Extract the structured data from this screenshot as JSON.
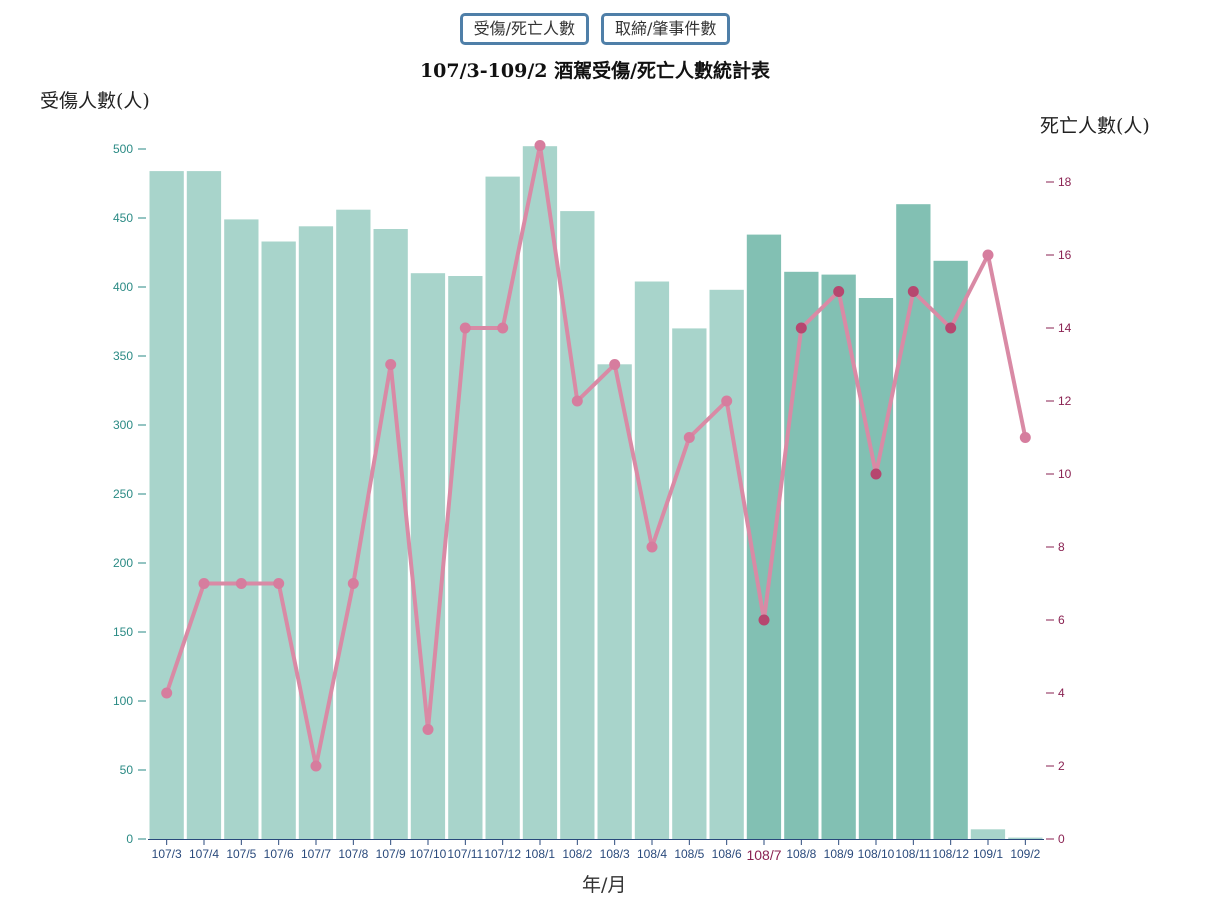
{
  "toolbar": {
    "tab_casualties": "受傷/死亡人數",
    "tab_cases": "取締/肇事件數"
  },
  "colors": {
    "bar_light": "#a8d4cb",
    "bar_dark": "#82c0b3",
    "line": "#d98aa5",
    "point": "#d67d9e",
    "point_dark": "#b6476f",
    "left_axis": "#2a8a84",
    "right_axis": "#8a2252",
    "x_axis": "#2a4a7c",
    "button_border": "#4f7fa8"
  },
  "chart_data": {
    "type": "bar",
    "title": "107/3-109/2 酒駕受傷/死亡人數統計表",
    "xlabel": "年/月",
    "ylabel": "受傷人數(人)",
    "y2label": "死亡人數(人)",
    "categories": [
      "107/3",
      "107/4",
      "107/5",
      "107/6",
      "107/7",
      "107/8",
      "107/9",
      "107/10",
      "107/11",
      "107/12",
      "108/1",
      "108/2",
      "108/3",
      "108/4",
      "108/5",
      "108/6",
      "108/7",
      "108/8",
      "108/9",
      "108/10",
      "108/11",
      "108/12",
      "109/1",
      "109/2"
    ],
    "series": [
      {
        "name": "受傷人數",
        "type": "bar",
        "axis": "left",
        "values": [
          484,
          484,
          449,
          433,
          444,
          456,
          442,
          410,
          408,
          480,
          502,
          455,
          344,
          404,
          370,
          398,
          438,
          411,
          409,
          392,
          460,
          419,
          7,
          1
        ]
      },
      {
        "name": "死亡人數",
        "type": "line",
        "axis": "right",
        "values": [
          4,
          7,
          7,
          7,
          2,
          7,
          13,
          3,
          14,
          14,
          19,
          12,
          13,
          8,
          11,
          12,
          6,
          14,
          15,
          10,
          15,
          14,
          16,
          11
        ]
      }
    ],
    "ylim": [
      0,
      500
    ],
    "yticks": [
      0,
      50,
      100,
      150,
      200,
      250,
      300,
      350,
      400,
      450,
      500
    ],
    "y2lim": [
      0,
      19
    ],
    "y2ticks": [
      0,
      2,
      4,
      6,
      8,
      10,
      12,
      14,
      16,
      18
    ],
    "highlighted_category": "108/7",
    "grid": false
  }
}
